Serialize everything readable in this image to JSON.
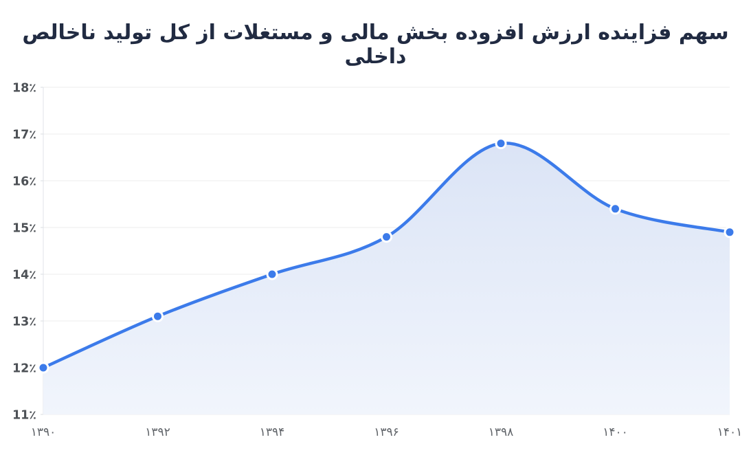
{
  "title": "سهم فزاینده ارزش افزوده بخش مالی و مستغلات از کل تولید ناخالص داخلی",
  "chart_data": {
    "type": "area",
    "title": "سهم فزاینده ارزش افزوده بخش مالی و مستغلات از کل تولید ناخالص داخلی",
    "categories": [
      "۱۳۹۰",
      "۱۳۹۲",
      "۱۳۹۴",
      "۱۳۹۶",
      "۱۳۹۸",
      "۱۴۰۰",
      "۱۴۰۱"
    ],
    "values": [
      12.0,
      13.1,
      14.0,
      14.8,
      16.8,
      15.4,
      14.9
    ],
    "xlabel": "",
    "ylabel": "",
    "ylim": [
      11,
      18
    ],
    "y_ticks": [
      {
        "v": 11,
        "label": "11٪"
      },
      {
        "v": 12,
        "label": "12٪"
      },
      {
        "v": 13,
        "label": "13٪"
      },
      {
        "v": 14,
        "label": "14٪"
      },
      {
        "v": 15,
        "label": "15٪"
      },
      {
        "v": 16,
        "label": "16٪"
      },
      {
        "v": 17,
        "label": "17٪"
      },
      {
        "v": 18,
        "label": "18٪"
      }
    ],
    "grid": true,
    "legend": false,
    "rtl": true,
    "marker": "circle",
    "smooth": true,
    "colors": {
      "line": "#3C7BEA",
      "marker_fill": "#3C7BEA",
      "marker_border": "#FFFFFF",
      "area_top": "#DBE4F6",
      "area_bottom": "#F1F5FC",
      "grid": "#EDEDED",
      "axis": "#E0E3E8",
      "tick_nub": "#D9DCE1",
      "y_tick_text": "#4D5156",
      "x_tick_text": "#5F6368",
      "title_text": "#212B42",
      "background": "#FFFFFF"
    }
  }
}
